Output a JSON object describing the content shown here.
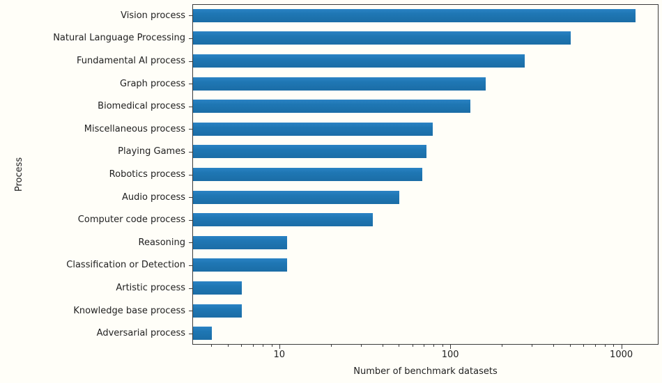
{
  "chart_data": {
    "type": "bar",
    "orientation": "horizontal",
    "x_scale": "log",
    "title": "",
    "xlabel": "Number of benchmark datasets",
    "ylabel": "Process",
    "categories": [
      "Vision process",
      "Natural Language Processing",
      "Fundamental AI process",
      "Graph process",
      "Biomedical process",
      "Miscellaneous process",
      "Playing Games",
      "Robotics process",
      "Audio process",
      "Computer code process",
      "Reasoning",
      "Classification or Detection",
      "Artistic process",
      "Knowledge base process",
      "Adversarial process"
    ],
    "values": [
      1200,
      500,
      270,
      160,
      130,
      78,
      72,
      68,
      50,
      35,
      11,
      11,
      6,
      6,
      4
    ],
    "xlim": [
      3.1,
      1650
    ],
    "x_ticks": [
      10,
      100,
      1000
    ],
    "x_tick_labels": [
      "10",
      "100",
      "1000"
    ],
    "bar_color": "#1f77b4",
    "grid": false,
    "legend_position": "none"
  }
}
